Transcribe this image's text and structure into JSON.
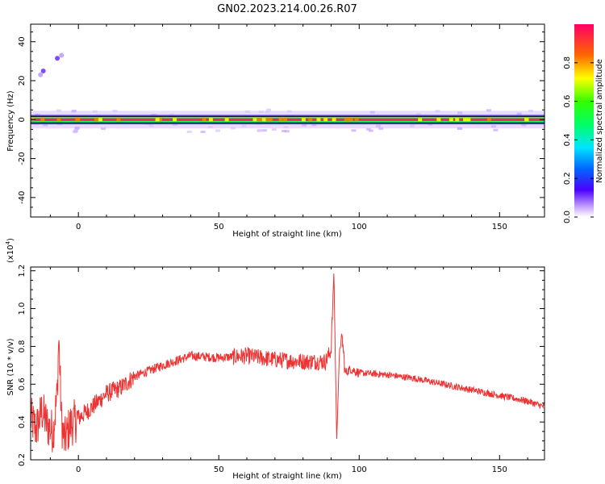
{
  "figure": {
    "title": "GN02.2023.214.00.26.R07"
  },
  "chart_data": [
    {
      "type": "heatmap",
      "name": "spectrogram",
      "xlabel": "Height of straight line (km)",
      "ylabel": "Frequency (Hz)",
      "xlim": [
        -17,
        166
      ],
      "ylim": [
        -50,
        49
      ],
      "x_ticks": [
        0,
        50,
        100,
        150
      ],
      "y_ticks": [
        -40,
        -20,
        0,
        20,
        40
      ],
      "y_tick_labels": [
        "-40",
        "-20",
        "0",
        "20",
        "40"
      ],
      "ridge_frequency_hz": 0,
      "ridge_halfwidth_hz": 1.5,
      "scatter_points": [
        {
          "x": -12.5,
          "y": 25,
          "v": 0.18
        },
        {
          "x": -13.5,
          "y": 23,
          "v": 0.12
        },
        {
          "x": -7.5,
          "y": 31.5,
          "v": 0.15
        },
        {
          "x": -6,
          "y": 33,
          "v": 0.08
        }
      ],
      "colorbar": {
        "label": "Normalized spectral amplitude",
        "range": [
          0,
          1
        ],
        "ticks": [
          0.0,
          0.2,
          0.4,
          0.6,
          0.8
        ],
        "tick_labels": [
          "0.0",
          "0.2",
          "0.4",
          "0.6",
          "0.8"
        ]
      }
    },
    {
      "type": "line",
      "name": "snr",
      "xlabel": "Height of straight line (km)",
      "ylabel": "SNR (10 * v/v)",
      "multiplier_label": "(x10",
      "multiplier_exponent": "4",
      "multiplier_close": ")",
      "xlim": [
        -17,
        166
      ],
      "ylim": [
        0.2,
        1.22
      ],
      "x_ticks": [
        0,
        50,
        100,
        150
      ],
      "y_ticks": [
        0.2,
        0.4,
        0.6,
        0.8,
        1.0,
        1.2
      ],
      "y_tick_labels": [
        "0.2",
        "0.4",
        "0.6",
        "0.8",
        "1.0",
        "1.2"
      ],
      "line_color": "#ee3333",
      "series": [
        {
          "x": [
            -17,
            -15,
            -13,
            -11,
            -9,
            -7.5,
            -7,
            -6,
            -5,
            -3,
            0,
            5,
            10,
            15,
            20,
            30,
            40,
            50,
            60,
            70,
            80,
            88,
            90,
            91,
            92,
            93,
            94,
            95,
            97,
            100,
            110,
            120,
            130,
            140,
            150,
            160,
            166
          ],
          "values": [
            0.42,
            0.36,
            0.46,
            0.38,
            0.35,
            0.55,
            0.86,
            0.4,
            0.3,
            0.38,
            0.42,
            0.48,
            0.55,
            0.58,
            0.64,
            0.7,
            0.75,
            0.74,
            0.75,
            0.73,
            0.72,
            0.72,
            0.78,
            1.2,
            0.3,
            0.78,
            0.84,
            0.66,
            0.68,
            0.66,
            0.65,
            0.63,
            0.6,
            0.57,
            0.54,
            0.51,
            0.48
          ]
        }
      ]
    }
  ]
}
